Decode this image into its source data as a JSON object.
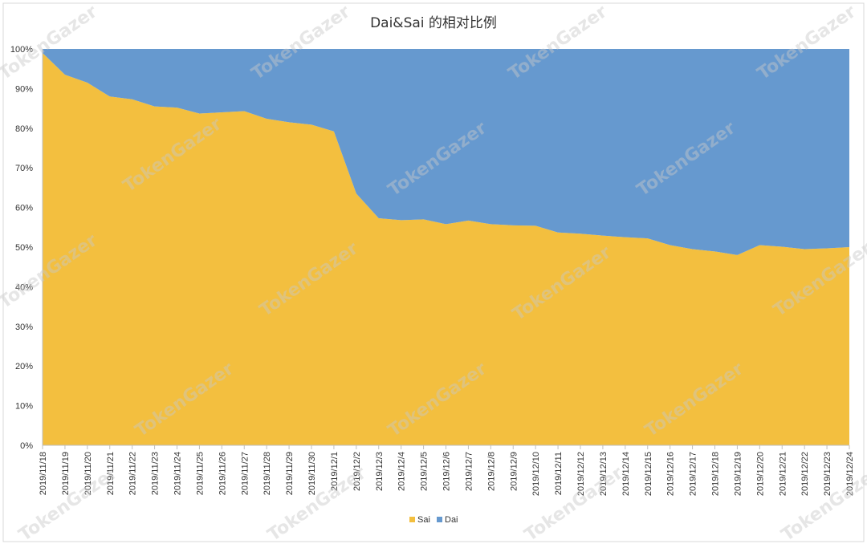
{
  "chart_data": {
    "type": "area",
    "stacked": "percent",
    "title": "Dai&Sai 的相对比例",
    "xlabel": "",
    "ylabel": "",
    "ylim": [
      0,
      100
    ],
    "yticks": [
      "0%",
      "10%",
      "20%",
      "30%",
      "40%",
      "50%",
      "60%",
      "70%",
      "80%",
      "90%",
      "100%"
    ],
    "grid": false,
    "legend_position": "bottom",
    "categories": [
      "2019/11/18",
      "2019/11/19",
      "2019/11/20",
      "2019/11/21",
      "2019/11/22",
      "2019/11/23",
      "2019/11/24",
      "2019/11/25",
      "2019/11/26",
      "2019/11/27",
      "2019/11/28",
      "2019/11/29",
      "2019/11/30",
      "2019/12/1",
      "2019/12/2",
      "2019/12/3",
      "2019/12/4",
      "2019/12/5",
      "2019/12/6",
      "2019/12/7",
      "2019/12/8",
      "2019/12/9",
      "2019/12/10",
      "2019/12/11",
      "2019/12/12",
      "2019/12/13",
      "2019/12/14",
      "2019/12/15",
      "2019/12/16",
      "2019/12/17",
      "2019/12/18",
      "2019/12/19",
      "2019/12/20",
      "2019/12/21",
      "2019/12/22",
      "2019/12/23",
      "2019/12/24"
    ],
    "series": [
      {
        "name": "Sai",
        "color": "#f3bf3f",
        "values": [
          99,
          93.5,
          91.5,
          88,
          87.3,
          85.5,
          85.2,
          83.7,
          84,
          84.3,
          82.4,
          81.5,
          80.9,
          79.2,
          63.5,
          57.3,
          56.8,
          57,
          55.8,
          56.7,
          55.8,
          55.5,
          55.4,
          53.7,
          53.4,
          52.9,
          52.5,
          52.2,
          50.5,
          49.5,
          48.9,
          48,
          50.5,
          50.1,
          49.5,
          49.7,
          50
        ]
      },
      {
        "name": "Dai",
        "color": "#6699cf",
        "values": [
          1,
          6.5,
          8.5,
          12,
          12.7,
          14.5,
          14.8,
          16.3,
          16,
          15.7,
          17.6,
          18.5,
          19.1,
          20.8,
          36.5,
          42.7,
          43.2,
          43,
          44.2,
          43.3,
          44.2,
          44.5,
          44.6,
          46.3,
          46.6,
          47.1,
          47.5,
          47.8,
          49.5,
          50.5,
          51.1,
          52,
          49.5,
          49.9,
          50.5,
          50.3,
          50
        ]
      }
    ]
  },
  "watermark": {
    "text": "TokenGazer"
  }
}
